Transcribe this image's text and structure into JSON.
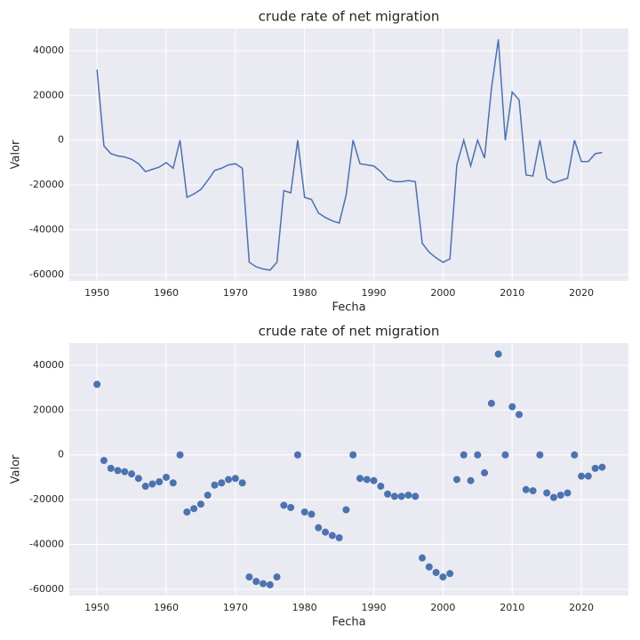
{
  "chart_data": [
    {
      "type": "line",
      "title": "crude rate of net migration",
      "x_label": "Fecha",
      "y_label": "Valor",
      "color": "#4c72b0",
      "grid": true,
      "x": [
        1950,
        1951,
        1952,
        1953,
        1954,
        1955,
        1956,
        1957,
        1958,
        1959,
        1960,
        1961,
        1962,
        1963,
        1964,
        1965,
        1966,
        1967,
        1968,
        1969,
        1970,
        1971,
        1972,
        1973,
        1974,
        1975,
        1976,
        1977,
        1978,
        1979,
        1980,
        1981,
        1982,
        1983,
        1984,
        1985,
        1986,
        1987,
        1988,
        1989,
        1990,
        1991,
        1992,
        1993,
        1994,
        1995,
        1996,
        1997,
        1998,
        1999,
        2000,
        2001,
        2002,
        2003,
        2004,
        2005,
        2006,
        2007,
        2008,
        2009,
        2010,
        2011,
        2012,
        2013,
        2014,
        2015,
        2016,
        2017,
        2018,
        2019,
        2020,
        2021,
        2022,
        2023
      ],
      "values": [
        31500,
        -2500,
        -6000,
        -7000,
        -7500,
        -8500,
        -10500,
        -14000,
        -13000,
        -12000,
        -10000,
        -12500,
        0,
        -25500,
        -24000,
        -22000,
        -18000,
        -13500,
        -12500,
        -11000,
        -10500,
        -12500,
        -54500,
        -56500,
        -57500,
        -58000,
        -54500,
        -22500,
        -23500,
        0,
        -25500,
        -26500,
        -32500,
        -34500,
        -36000,
        -37000,
        -24500,
        0,
        -10500,
        -11000,
        -11500,
        -14000,
        -17500,
        -18500,
        -18500,
        -18000,
        -18500,
        -46000,
        -50000,
        -52500,
        -54500,
        -53000,
        -11000,
        0,
        -11500,
        0,
        -8000,
        23000,
        45000,
        0,
        21500,
        18000,
        -15500,
        -16000,
        0,
        -17000,
        -19000,
        -18000,
        -17000,
        0,
        -9500,
        -9500,
        -6000,
        -5500
      ],
      "xlim": [
        1946,
        2026.8
      ],
      "xticks": [
        1950,
        1960,
        1970,
        1980,
        1990,
        2000,
        2010,
        2020
      ],
      "ylim": [
        -62800,
        49900
      ],
      "yticks": [
        -60000,
        -40000,
        -20000,
        0,
        20000,
        40000
      ]
    },
    {
      "type": "scatter",
      "title": "crude rate of net migration",
      "x_label": "Fecha",
      "y_label": "Valor",
      "color": "#4c72b0",
      "grid": true,
      "x": [
        1950,
        1951,
        1952,
        1953,
        1954,
        1955,
        1956,
        1957,
        1958,
        1959,
        1960,
        1961,
        1962,
        1963,
        1964,
        1965,
        1966,
        1967,
        1968,
        1969,
        1970,
        1971,
        1972,
        1973,
        1974,
        1975,
        1976,
        1977,
        1978,
        1979,
        1980,
        1981,
        1982,
        1983,
        1984,
        1985,
        1986,
        1987,
        1988,
        1989,
        1990,
        1991,
        1992,
        1993,
        1994,
        1995,
        1996,
        1997,
        1998,
        1999,
        2000,
        2001,
        2002,
        2003,
        2004,
        2005,
        2006,
        2007,
        2008,
        2009,
        2010,
        2011,
        2012,
        2013,
        2014,
        2015,
        2016,
        2017,
        2018,
        2019,
        2020,
        2021,
        2022,
        2023
      ],
      "values": [
        31500,
        -2500,
        -6000,
        -7000,
        -7500,
        -8500,
        -10500,
        -14000,
        -13000,
        -12000,
        -10000,
        -12500,
        0,
        -25500,
        -24000,
        -22000,
        -18000,
        -13500,
        -12500,
        -11000,
        -10500,
        -12500,
        -54500,
        -56500,
        -57500,
        -58000,
        -54500,
        -22500,
        -23500,
        0,
        -25500,
        -26500,
        -32500,
        -34500,
        -36000,
        -37000,
        -24500,
        0,
        -10500,
        -11000,
        -11500,
        -14000,
        -17500,
        -18500,
        -18500,
        -18000,
        -18500,
        -46000,
        -50000,
        -52500,
        -54500,
        -53000,
        -11000,
        0,
        -11500,
        0,
        -8000,
        23000,
        45000,
        0,
        21500,
        18000,
        -15500,
        -16000,
        0,
        -17000,
        -19000,
        -18000,
        -17000,
        0,
        -9500,
        -9500,
        -6000,
        -5500
      ],
      "xlim": [
        1946,
        2026.8
      ],
      "xticks": [
        1950,
        1960,
        1970,
        1980,
        1990,
        2000,
        2010,
        2020
      ],
      "ylim": [
        -62800,
        49900
      ],
      "yticks": [
        -60000,
        -40000,
        -20000,
        0,
        20000,
        40000
      ]
    }
  ]
}
